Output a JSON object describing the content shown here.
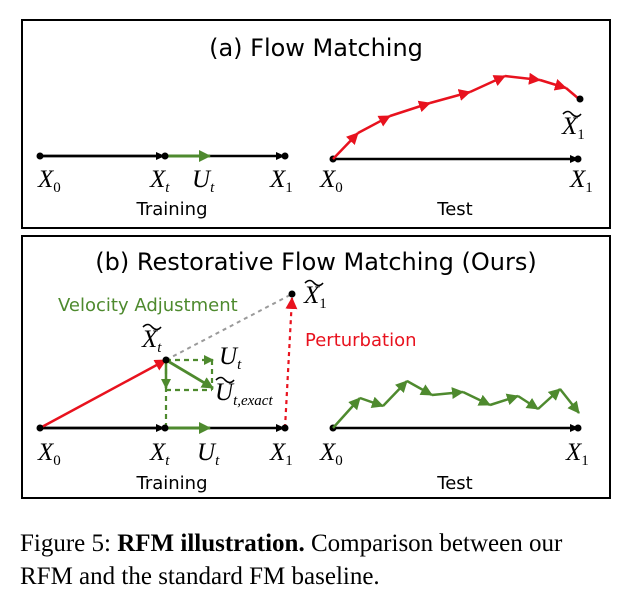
{
  "panel_a": {
    "title": "(a) Flow Matching",
    "training_label": "Training",
    "test_label": "Test",
    "training": {
      "x0": "X",
      "x0_sub": "0",
      "xt": "X",
      "xt_sub": "t",
      "ut": "U",
      "ut_sub": "t",
      "x1": "X",
      "x1_sub": "1"
    },
    "test": {
      "x0": "X",
      "x0_sub": "0",
      "x1": "X",
      "x1_sub": "1",
      "x1_tilde": "X",
      "x1_tilde_sub": "1"
    }
  },
  "panel_b": {
    "title": "(b) Restorative Flow Matching (Ours)",
    "velocity_adjustment": "Velocity Adjustment",
    "perturbation": "Perturbation",
    "training_label": "Training",
    "test_label": "Test",
    "training": {
      "x0": "X",
      "x0_sub": "0",
      "xt": "X",
      "xt_sub": "t",
      "ut": "U",
      "ut_sub": "t",
      "x1": "X",
      "x1_sub": "1",
      "xt_tilde": "X",
      "xt_tilde_sub": "t",
      "x1_tilde": "X",
      "x1_tilde_sub": "1",
      "ut_top": "U",
      "ut_top_sub": "t",
      "ut_exact": "U",
      "ut_exact_sub": "t,exact"
    },
    "test": {
      "x0": "X",
      "x0_sub": "0",
      "x1": "X",
      "x1_sub": "1"
    }
  },
  "caption": {
    "prefix": "Figure 5: ",
    "bold": "RFM illustration.",
    "rest": " Comparison between our RFM and the standard FM baseline."
  },
  "colors": {
    "red": "#e8121e",
    "green": "#4e8a2e",
    "gray": "#9a9a9a",
    "black": "#000000"
  }
}
